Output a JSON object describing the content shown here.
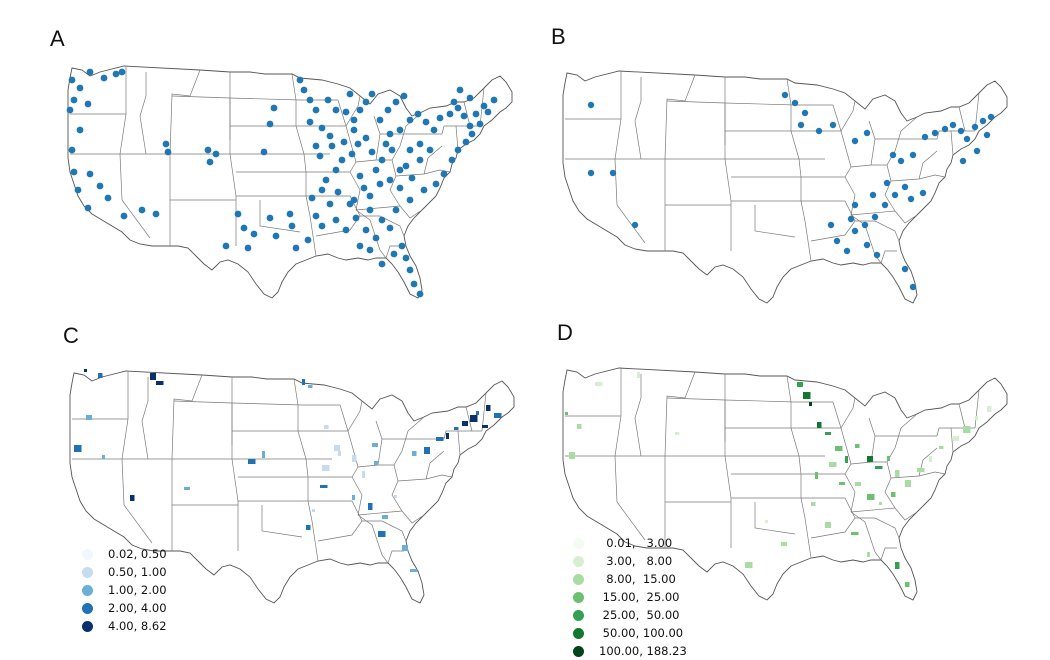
{
  "panels": [
    {
      "letter": "A"
    },
    {
      "letter": "B"
    },
    {
      "letter": "C"
    },
    {
      "letter": "D"
    }
  ],
  "colors": {
    "point": "#1f77b4",
    "border": "#7a7a7a",
    "land": "#ffffff"
  },
  "legend_c": {
    "items": [
      {
        "label": "0.02, 0.50",
        "color": "#f2f6fd"
      },
      {
        "label": "0.50, 1.00",
        "color": "#c6dbef"
      },
      {
        "label": "1.00, 2.00",
        "color": "#6baed6"
      },
      {
        "label": "2.00, 4.00",
        "color": "#2171b5"
      },
      {
        "label": "4.00, 8.62",
        "color": "#08306b"
      }
    ]
  },
  "legend_d": {
    "items": [
      {
        "label": "  0.01,   3.00",
        "color": "#f4fbf2"
      },
      {
        "label": "  3.00,   8.00",
        "color": "#d7efd1"
      },
      {
        "label": "  8.00,  15.00",
        "color": "#a8dca2"
      },
      {
        "label": " 15.00,  25.00",
        "color": "#6cc070"
      },
      {
        "label": " 25.00,  50.00",
        "color": "#35a054"
      },
      {
        "label": " 50.00, 100.00",
        "color": "#13782f"
      },
      {
        "label": "100.00, 188.23",
        "color": "#00441b"
      }
    ]
  },
  "map_layers": {
    "panel_a": "site-points",
    "panel_b": "site-points",
    "panel_c": "county-choropleth-blues",
    "panel_d": "county-choropleth-greens"
  }
}
